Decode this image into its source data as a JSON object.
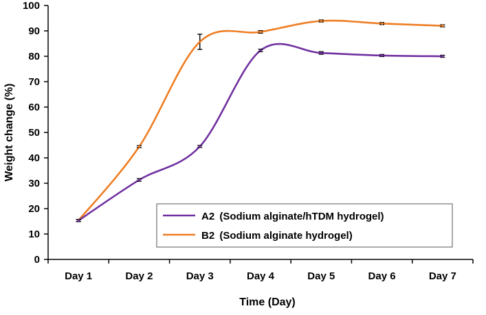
{
  "chart_data": {
    "type": "line",
    "title": "",
    "xlabel": "Time (Day)",
    "ylabel": "Weight change (%)",
    "categories": [
      "Day 1",
      "Day 2",
      "Day 3",
      "Day 4",
      "Day 5",
      "Day 6",
      "Day 7"
    ],
    "ylim": [
      0,
      100
    ],
    "yticks": [
      0,
      10,
      20,
      30,
      40,
      50,
      60,
      70,
      80,
      90,
      100
    ],
    "legend_position": "lower-right",
    "series": [
      {
        "name": "A2",
        "label": "(Sodium alginate/hTDM hydrogel)",
        "color": "#7030a0",
        "values": [
          15.3,
          31.3,
          44.5,
          82.3,
          81.3,
          80.3,
          80.0
        ],
        "errors": [
          0.4,
          0.5,
          0.4,
          0.5,
          0.5,
          0.4,
          0.4
        ]
      },
      {
        "name": "B2",
        "label": "(Sodium alginate hydrogel)",
        "color": "#ee7d22",
        "values": [
          15.3,
          44.4,
          85.7,
          89.6,
          93.9,
          92.9,
          92.0
        ],
        "errors": [
          0.4,
          0.4,
          3.0,
          0.5,
          0.4,
          0.4,
          0.4
        ]
      }
    ]
  }
}
